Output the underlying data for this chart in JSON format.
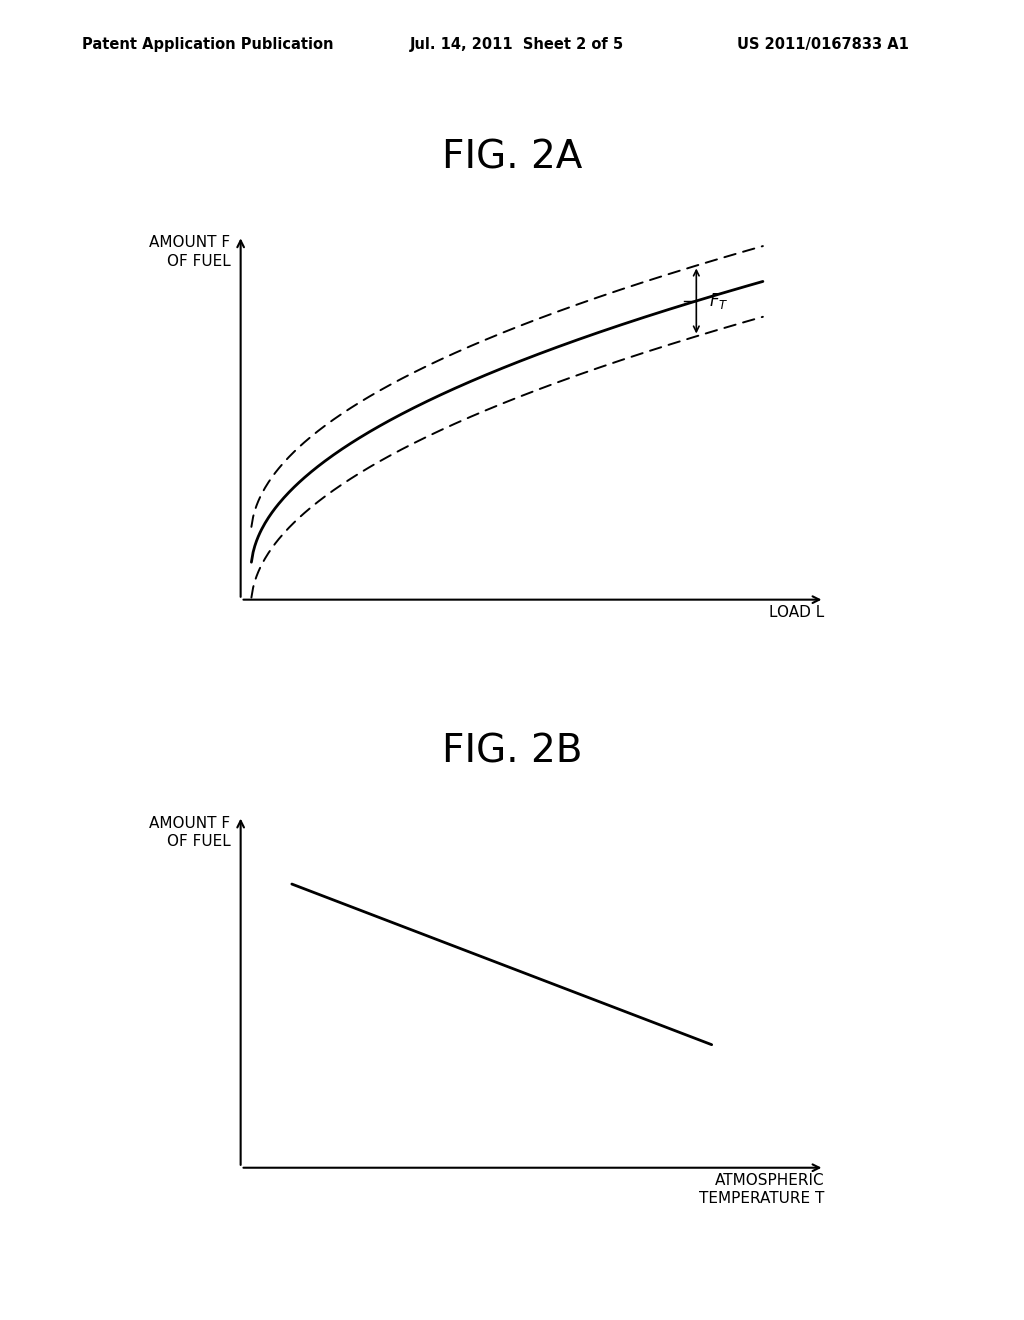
{
  "background_color": "#ffffff",
  "header_text_left": "Patent Application Publication",
  "header_text_mid": "Jul. 14, 2011  Sheet 2 of 5",
  "header_text_right": "US 2011/0167833 A1",
  "fig2a_title": "FIG. 2A",
  "fig2b_title": "FIG. 2B",
  "fig2a_ylabel_line1": "AMOUNT F",
  "fig2a_ylabel_line2": "OF FUEL",
  "fig2a_xlabel": "LOAD L",
  "fig2b_ylabel_line1": "AMOUNT F",
  "fig2b_ylabel_line2": "OF FUEL",
  "fig2b_xlabel_line1": "ATMOSPHERIC",
  "fig2b_xlabel_line2": "TEMPERATURE T",
  "line_color": "#000000",
  "dashed_color": "#000000",
  "arrow_color": "#000000",
  "font_size_header": 10.5,
  "font_size_title": 28,
  "font_size_axis_label": 11,
  "font_size_ft": 12
}
